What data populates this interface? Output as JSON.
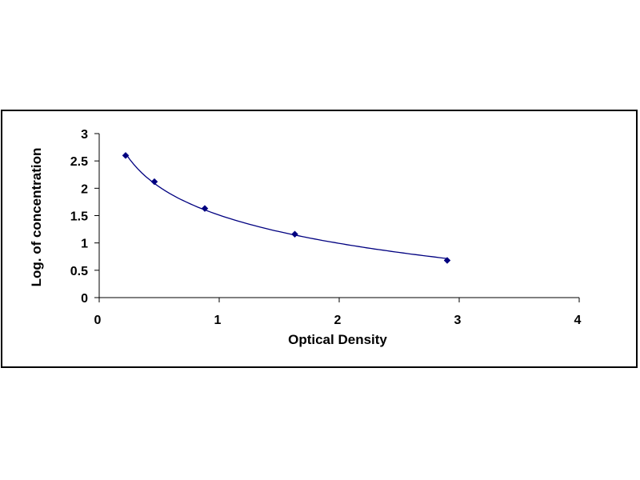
{
  "chart_data": {
    "type": "scatter",
    "title": "",
    "xlabel": "Optical Density",
    "ylabel": "Log. of concentration",
    "xlim": [
      0,
      4
    ],
    "ylim": [
      0,
      3
    ],
    "x_ticks": [
      "0",
      "1",
      "2",
      "3",
      "4"
    ],
    "y_ticks": [
      "0",
      "0.5",
      "1",
      "1.5",
      "2",
      "2.5",
      "3"
    ],
    "grid": false,
    "legend": "none",
    "trendline": "fitted curve through points",
    "series": [
      {
        "x": [
          0.22,
          0.46,
          0.88,
          1.63,
          2.9
        ],
        "y": [
          2.6,
          2.12,
          1.63,
          1.16,
          0.68
        ],
        "marker": "diamond"
      }
    ],
    "colors": {
      "marker": "#000080",
      "curve": "#000080",
      "axis": "#000000"
    }
  }
}
